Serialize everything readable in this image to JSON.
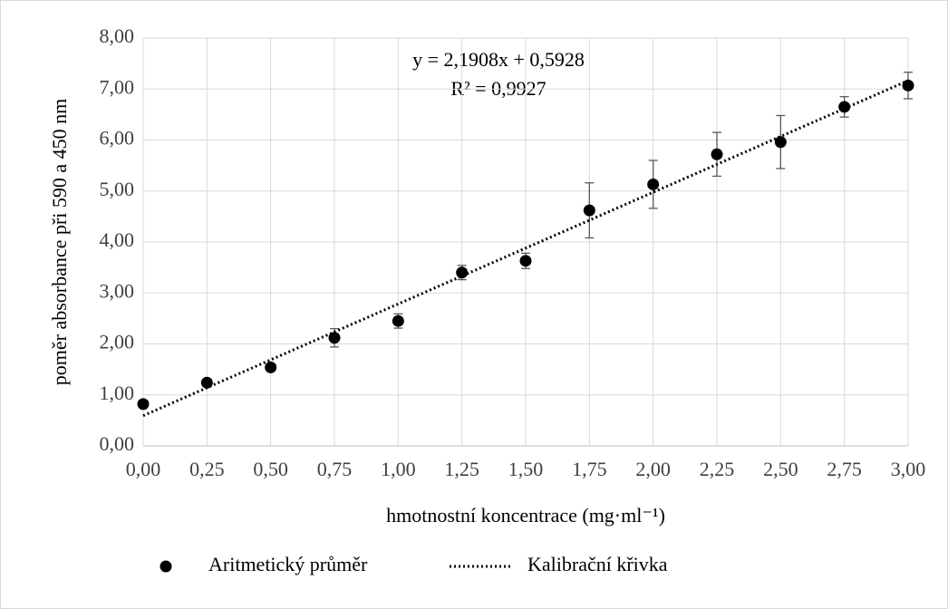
{
  "chart_data": {
    "type": "scatter",
    "x_label": "hmotnostní koncentrace (mg·ml⁻¹)",
    "y_label": "poměr absorbance při 590 a 450 nm",
    "x": [
      0,
      0.25,
      0.5,
      0.75,
      1,
      1.25,
      1.5,
      1.75,
      2,
      2.25,
      2.5,
      2.75,
      3
    ],
    "series": [
      {
        "name": "Aritmetický průměr",
        "color": "#000000",
        "values": [
          0.82,
          1.24,
          1.54,
          2.12,
          2.45,
          3.4,
          3.63,
          4.62,
          5.13,
          5.72,
          5.96,
          6.65,
          7.07
        ],
        "errors": [
          0.05,
          0.07,
          0.05,
          0.18,
          0.14,
          0.14,
          0.15,
          0.54,
          0.47,
          0.43,
          0.52,
          0.2,
          0.26
        ]
      }
    ],
    "trendline": {
      "name": "Kalibrační křivka",
      "slope": 2.1908,
      "intercept": 0.5928,
      "equation": "y = 2,1908x + 0,5928",
      "r2": "R² = 0,9927",
      "color": "#000000"
    },
    "xlim": [
      0,
      3
    ],
    "xticks": [
      {
        "value": 0,
        "label": "0,00"
      },
      {
        "value": 0.25,
        "label": "0,25"
      },
      {
        "value": 0.5,
        "label": "0,50"
      },
      {
        "value": 0.75,
        "label": "0,75"
      },
      {
        "value": 1,
        "label": "1,00"
      },
      {
        "value": 1.25,
        "label": "1,25"
      },
      {
        "value": 1.5,
        "label": "1,50"
      },
      {
        "value": 1.75,
        "label": "1,75"
      },
      {
        "value": 2,
        "label": "2,00"
      },
      {
        "value": 2.25,
        "label": "2,25"
      },
      {
        "value": 2.5,
        "label": "2,50"
      },
      {
        "value": 2.75,
        "label": "2,75"
      },
      {
        "value": 3,
        "label": "3,00"
      }
    ],
    "ylim": [
      0,
      8
    ],
    "yticks": [
      {
        "value": 0,
        "label": "0,00"
      },
      {
        "value": 1,
        "label": "1,00"
      },
      {
        "value": 2,
        "label": "2,00"
      },
      {
        "value": 3,
        "label": "3,00"
      },
      {
        "value": 4,
        "label": "4,00"
      },
      {
        "value": 5,
        "label": "5,00"
      },
      {
        "value": 6,
        "label": "6,00"
      },
      {
        "value": 7,
        "label": "7,00"
      },
      {
        "value": 8,
        "label": "8,00"
      }
    ],
    "grid": true,
    "legend": "bottom"
  }
}
